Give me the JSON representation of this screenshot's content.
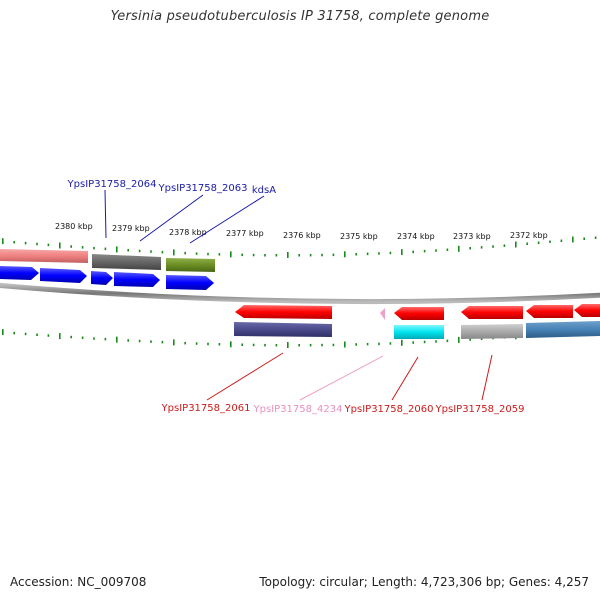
{
  "title": "Yersinia pseudotuberculosis IP 31758, complete genome",
  "footer": {
    "accession": "Accession: NC_009708",
    "stats": "Topology: circular; Length: 4,723,306 bp; Genes: 4,257"
  },
  "scale": {
    "unit": "kbp",
    "ticks": [
      {
        "label": "2380 kbp"
      },
      {
        "label": "2379 kbp"
      },
      {
        "label": "2378 kbp"
      },
      {
        "label": "2377 kbp"
      },
      {
        "label": "2376 kbp"
      },
      {
        "label": "2375 kbp"
      },
      {
        "label": "2374 kbp"
      },
      {
        "label": "2373 kbp"
      },
      {
        "label": "2372 kbp"
      }
    ]
  },
  "gene_labels": {
    "outer": [
      {
        "name": "YpsIP31758_2064",
        "color": "#1a1aa8"
      },
      {
        "name": "YpsIP31758_2063",
        "color": "#1a1aa8"
      },
      {
        "name": "kdsA",
        "color": "#1a1aa8"
      }
    ],
    "inner": [
      {
        "name": "YpsIP31758_2061",
        "color": "#cc1a1a"
      },
      {
        "name": "YpsIP31758_4234",
        "color": "#e890c0"
      },
      {
        "name": "YpsIP31758_2060",
        "color": "#cc1a1a"
      },
      {
        "name": "YpsIP31758_2059",
        "color": "#cc1a1a"
      }
    ]
  },
  "colors": {
    "forward_cds": "#ff0000",
    "reverse_cds": "#0000ff",
    "salmon": "#f08080",
    "gray": "#666666",
    "olive": "#6b8e23",
    "navy_purple": "#4a4a8a",
    "cyan": "#00e5ee",
    "light_gray": "#aaaaaa",
    "steel_blue": "#4682b4",
    "pink": "#f0a0c8",
    "backbone": "#888888",
    "tick": "#1a8a1a"
  }
}
